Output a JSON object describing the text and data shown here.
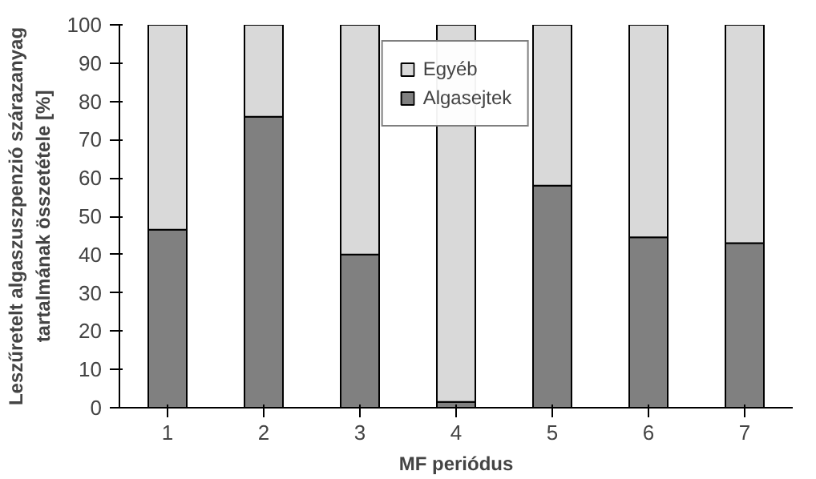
{
  "chart_data": {
    "type": "bar",
    "stacked": true,
    "xlabel": "MF periódus",
    "ylabel": "Leszűretelt algaszuszpenzió szárazanyag\ntartalmának összetétele [%]",
    "categories": [
      "1",
      "2",
      "3",
      "4",
      "5",
      "6",
      "7"
    ],
    "series": [
      {
        "name": "Algasejtek",
        "color": "#808080",
        "values": [
          46.5,
          76,
          40,
          1.5,
          58,
          44.5,
          43
        ]
      },
      {
        "name": "Egyéb",
        "color": "#d9d9d9",
        "values": [
          53.5,
          24,
          60,
          98.5,
          42,
          55.5,
          57
        ]
      }
    ],
    "ylim": [
      0,
      100
    ],
    "yticks": [
      0,
      10,
      20,
      30,
      40,
      50,
      60,
      70,
      80,
      90,
      100
    ],
    "grid": false,
    "legend": "top"
  }
}
